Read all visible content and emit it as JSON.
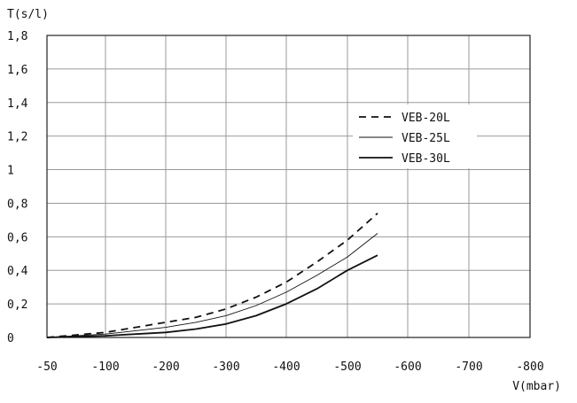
{
  "chart_data": {
    "type": "line",
    "title": "",
    "xlabel": "V(mbar)",
    "ylabel": "T(s/l)",
    "xlim": [
      -50,
      -800
    ],
    "ylim": [
      0,
      1.8
    ],
    "grid": true,
    "legend_position": "right-middle",
    "x_ticks": [
      -50,
      -100,
      -200,
      -300,
      -400,
      -500,
      -600,
      -700,
      -800
    ],
    "x_tick_labels": [
      "-50",
      "-100",
      "-200",
      "-300",
      "-400",
      "-500",
      "-600",
      "-700",
      "-800"
    ],
    "y_ticks": [
      0,
      0.2,
      0.4,
      0.6,
      0.8,
      1.0,
      1.2,
      1.4,
      1.6,
      1.8
    ],
    "y_tick_labels": [
      "0",
      "0,2",
      "0,4",
      "0,6",
      "0,8",
      "1",
      "1,2",
      "1,4",
      "1,6",
      "1,8"
    ],
    "series": [
      {
        "name": "VEB-20L",
        "style": "dashed",
        "color": "#111111",
        "x": [
          -50,
          -100,
          -150,
          -200,
          -250,
          -300,
          -350,
          -400,
          -450,
          -500,
          -550
        ],
        "y": [
          0.0,
          0.03,
          0.06,
          0.09,
          0.12,
          0.17,
          0.24,
          0.33,
          0.45,
          0.58,
          0.74
        ]
      },
      {
        "name": "VEB-25L",
        "style": "thin",
        "color": "#111111",
        "x": [
          -50,
          -100,
          -150,
          -200,
          -250,
          -300,
          -350,
          -400,
          -450,
          -500,
          -550
        ],
        "y": [
          0.0,
          0.02,
          0.04,
          0.06,
          0.09,
          0.13,
          0.19,
          0.27,
          0.37,
          0.48,
          0.62
        ]
      },
      {
        "name": "VEB-30L",
        "style": "solid",
        "color": "#111111",
        "x": [
          -50,
          -100,
          -150,
          -200,
          -250,
          -300,
          -350,
          -400,
          -450,
          -500,
          -550
        ],
        "y": [
          0.0,
          0.01,
          0.02,
          0.03,
          0.05,
          0.08,
          0.13,
          0.2,
          0.29,
          0.4,
          0.49
        ]
      }
    ]
  }
}
